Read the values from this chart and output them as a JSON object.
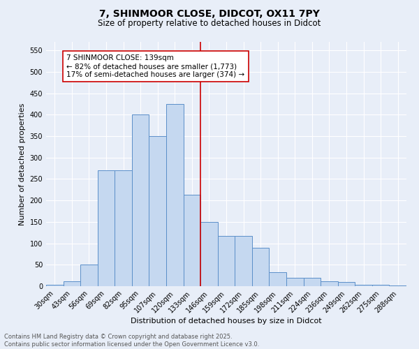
{
  "title": "7, SHINMOOR CLOSE, DIDCOT, OX11 7PY",
  "subtitle": "Size of property relative to detached houses in Didcot",
  "xlabel": "Distribution of detached houses by size in Didcot",
  "ylabel": "Number of detached properties",
  "categories": [
    "30sqm",
    "43sqm",
    "56sqm",
    "69sqm",
    "82sqm",
    "95sqm",
    "107sqm",
    "120sqm",
    "133sqm",
    "146sqm",
    "159sqm",
    "172sqm",
    "185sqm",
    "198sqm",
    "211sqm",
    "224sqm",
    "236sqm",
    "249sqm",
    "262sqm",
    "275sqm",
    "288sqm"
  ],
  "values": [
    3,
    12,
    50,
    270,
    270,
    400,
    350,
    425,
    213,
    150,
    118,
    118,
    90,
    32,
    20,
    20,
    12,
    10,
    3,
    3,
    2
  ],
  "bar_color": "#c5d8f0",
  "bar_edge_color": "#5b8fc9",
  "vline_color": "#cc0000",
  "annotation_text": "7 SHINMOOR CLOSE: 139sqm\n← 82% of detached houses are smaller (1,773)\n17% of semi-detached houses are larger (374) →",
  "annotation_box_color": "#ffffff",
  "annotation_box_edge_color": "#cc0000",
  "ylim": [
    0,
    570
  ],
  "yticks": [
    0,
    50,
    100,
    150,
    200,
    250,
    300,
    350,
    400,
    450,
    500,
    550
  ],
  "background_color": "#e8eef8",
  "grid_color": "#ffffff",
  "footer_text": "Contains HM Land Registry data © Crown copyright and database right 2025.\nContains public sector information licensed under the Open Government Licence v3.0.",
  "title_fontsize": 10,
  "subtitle_fontsize": 8.5,
  "xlabel_fontsize": 8,
  "ylabel_fontsize": 8,
  "tick_fontsize": 7,
  "annotation_fontsize": 7.5,
  "footer_fontsize": 6
}
